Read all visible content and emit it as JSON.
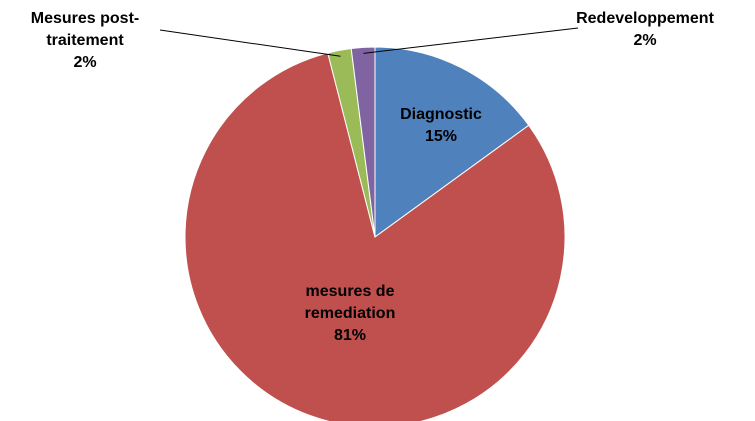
{
  "chart_data": {
    "type": "pie",
    "categories": [
      "Diagnostic",
      "mesures de remediation",
      "Mesures post-traitement",
      "Redeveloppement"
    ],
    "values": [
      15,
      81,
      2,
      2
    ],
    "value_labels": [
      "15%",
      "81%",
      "2%",
      "2%"
    ],
    "colors": [
      "#4f81bd",
      "#c0504d",
      "#9bbb59",
      "#8064a2"
    ]
  }
}
